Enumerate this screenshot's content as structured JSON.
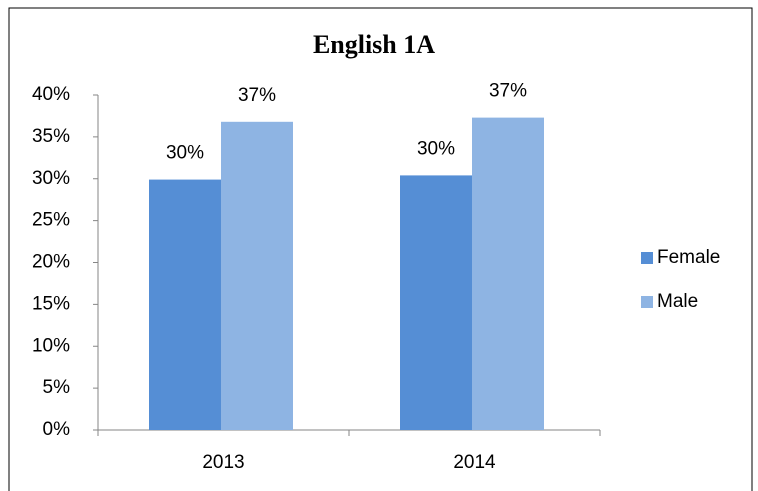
{
  "chart_data": {
    "type": "bar",
    "title": "English 1A",
    "categories": [
      "2013",
      "2014"
    ],
    "series": [
      {
        "name": "Female",
        "color": "#558ed5",
        "values": [
          29.9,
          30.4
        ],
        "value_labels": [
          "30%",
          "30%"
        ]
      },
      {
        "name": "Male",
        "color": "#8eb4e3",
        "values": [
          36.8,
          37.3
        ],
        "value_labels": [
          "37%",
          "37%"
        ]
      }
    ],
    "ylim": [
      0,
      40
    ],
    "yticks": [
      {
        "value": 0,
        "label": "0%"
      },
      {
        "value": 5,
        "label": "5%"
      },
      {
        "value": 10,
        "label": "10%"
      },
      {
        "value": 15,
        "label": "15%"
      },
      {
        "value": 20,
        "label": "20%"
      },
      {
        "value": 25,
        "label": "25%"
      },
      {
        "value": 30,
        "label": "30%"
      },
      {
        "value": 35,
        "label": "35%"
      },
      {
        "value": 40,
        "label": "40%"
      }
    ],
    "legend": "right"
  }
}
